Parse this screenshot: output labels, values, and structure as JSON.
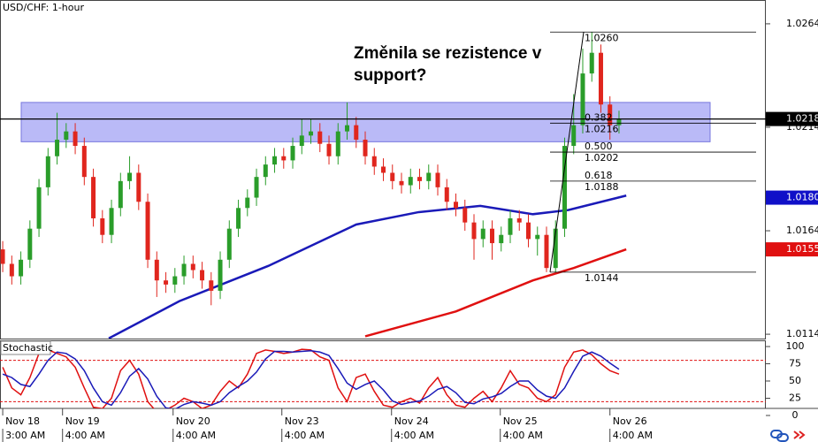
{
  "chart_data": [
    {
      "type": "candlestick",
      "title": "USD/CHF: 1-hour",
      "annotation": "Změnila se rezistence v support?",
      "up_color": "#2a9d2a",
      "down_color": "#e0261e",
      "open": [
        1.0155,
        1.0148,
        1.0142,
        1.015,
        1.0165,
        1.0185,
        1.02,
        1.0208,
        1.0212,
        1.0205,
        1.019,
        1.017,
        1.0162,
        1.0175,
        1.0188,
        1.0192,
        1.0178,
        1.015,
        1.014,
        1.0138,
        1.0142,
        1.0148,
        1.0145,
        1.014,
        1.0135,
        1.015,
        1.0165,
        1.0175,
        1.018,
        1.019,
        1.0196,
        1.02,
        1.0198,
        1.0205,
        1.021,
        1.0212,
        1.0206,
        1.02,
        1.0212,
        1.0215,
        1.0208,
        1.02,
        1.0195,
        1.0192,
        1.0188,
        1.0186,
        1.019,
        1.0188,
        1.0192,
        1.0185,
        1.0178,
        1.0175,
        1.0168,
        1.016,
        1.0165,
        1.0158,
        1.0162,
        1.017,
        1.0168,
        1.016,
        1.0162,
        1.0146,
        1.0165,
        1.0205,
        1.0215,
        1.024,
        1.025,
        1.0225,
        1.0215
      ],
      "high": [
        1.0159,
        1.0152,
        1.0154,
        1.0169,
        1.0189,
        1.0204,
        1.0221,
        1.0216,
        1.0216,
        1.0209,
        1.0194,
        1.0174,
        1.0179,
        1.0192,
        1.02,
        1.0196,
        1.0182,
        1.0154,
        1.0144,
        1.0146,
        1.0152,
        1.0152,
        1.0149,
        1.0144,
        1.0154,
        1.0169,
        1.0179,
        1.0184,
        1.0194,
        1.02,
        1.0204,
        1.0204,
        1.0209,
        1.0218,
        1.0218,
        1.0216,
        1.021,
        1.0216,
        1.0226,
        1.0219,
        1.0212,
        1.0204,
        1.0199,
        1.0196,
        1.0192,
        1.0194,
        1.0194,
        1.0196,
        1.0196,
        1.0189,
        1.0182,
        1.0179,
        1.0172,
        1.0169,
        1.0169,
        1.0166,
        1.0174,
        1.0174,
        1.0172,
        1.0166,
        1.0166,
        1.0169,
        1.0209,
        1.023,
        1.0252,
        1.026,
        1.0254,
        1.0229,
        1.0222
      ],
      "low": [
        1.0144,
        1.0138,
        1.0138,
        1.0146,
        1.0161,
        1.0181,
        1.0196,
        1.0204,
        1.0201,
        1.0186,
        1.0166,
        1.0158,
        1.0158,
        1.0171,
        1.0184,
        1.0174,
        1.0146,
        1.0132,
        1.0134,
        1.0134,
        1.0138,
        1.0141,
        1.0136,
        1.0128,
        1.0131,
        1.0146,
        1.0161,
        1.0171,
        1.0176,
        1.0186,
        1.0192,
        1.0194,
        1.0194,
        1.0201,
        1.0206,
        1.0202,
        1.0196,
        1.0196,
        1.0208,
        1.0204,
        1.0196,
        1.0191,
        1.0188,
        1.0184,
        1.0182,
        1.0182,
        1.0184,
        1.0184,
        1.0181,
        1.0174,
        1.0171,
        1.0164,
        1.015,
        1.0156,
        1.015,
        1.0154,
        1.0158,
        1.0164,
        1.0156,
        1.0152,
        1.0144,
        1.0144,
        1.0161,
        1.0201,
        1.0211,
        1.0236,
        1.0221,
        1.0208,
        1.0211
      ],
      "close": [
        1.0148,
        1.0142,
        1.015,
        1.0165,
        1.0185,
        1.02,
        1.0208,
        1.0212,
        1.0205,
        1.019,
        1.017,
        1.0162,
        1.0175,
        1.0188,
        1.0192,
        1.0178,
        1.015,
        1.014,
        1.0138,
        1.0142,
        1.0148,
        1.0145,
        1.014,
        1.0135,
        1.015,
        1.0165,
        1.0175,
        1.018,
        1.019,
        1.0196,
        1.02,
        1.0198,
        1.0205,
        1.021,
        1.0212,
        1.0206,
        1.02,
        1.0212,
        1.0215,
        1.0208,
        1.02,
        1.0195,
        1.0192,
        1.0188,
        1.0186,
        1.019,
        1.0188,
        1.0192,
        1.0185,
        1.0178,
        1.0175,
        1.0168,
        1.016,
        1.0165,
        1.0158,
        1.0162,
        1.017,
        1.0168,
        1.016,
        1.0162,
        1.0146,
        1.0165,
        1.0205,
        1.0215,
        1.024,
        1.025,
        1.0225,
        1.0215,
        1.0218
      ],
      "ma": [
        {
          "color": "#1a1ab8",
          "x": [
            11.7,
            19.5,
            29.3,
            39,
            45.9,
            52.7,
            58.5,
            62.4,
            68.8
          ],
          "values": [
            1.0112,
            1.013,
            1.0147,
            1.0167,
            1.0173,
            1.0176,
            1.0172,
            1.0174,
            1.0181
          ]
        },
        {
          "color": "#e01010",
          "x": [
            40,
            50,
            58.5,
            63,
            68.8
          ],
          "values": [
            1.0113,
            1.0125,
            1.014,
            1.0146,
            1.0155
          ]
        }
      ],
      "zone": [
        1.0207,
        1.0226
      ],
      "zone_color": "#8c8cf2",
      "fib": [
        {
          "price": {
            "value": 1.026,
            "label": "1.0260"
          }
        },
        {
          "ratio": "0.382",
          "price": 1.0216
        },
        {
          "ratio": "0.500",
          "price": 1.0202
        },
        {
          "ratio": "0.618",
          "price": 1.0188
        },
        {
          "price": 1.0144
        }
      ],
      "price_tags": [
        {
          "value": 1.0218,
          "color": "#000000"
        },
        {
          "value": 1.018,
          "label": "1.0180",
          "color": "#1010c8"
        },
        {
          "value": 1.0155,
          "color": "#e01010"
        }
      ],
      "xlim": [
        -0.3,
        84.2
      ],
      "ylim": [
        1.01119,
        1.02755
      ],
      "yticks": [
        1.0114,
        1.0164,
        1.0214,
        1.0264
      ],
      "xticks": [
        {
          "value": 0,
          "label": "Nov 18"
        },
        {
          "value": 6.6,
          "label": "Nov 19"
        },
        {
          "value": 18.8,
          "label": "Nov 20"
        },
        {
          "value": 30.8,
          "label": "Nov 23"
        },
        {
          "value": 42.9,
          "label": "Nov 24"
        },
        {
          "value": 54.9,
          "label": "Nov 25"
        },
        {
          "value": 67,
          "label": "Nov 26"
        }
      ],
      "xticks_time": [
        {
          "value": 0,
          "label": "3:00 AM"
        },
        {
          "value": 6.6,
          "label": "4:00 AM"
        },
        {
          "value": 18.8,
          "label": "4:00 AM"
        },
        {
          "value": 30.8,
          "label": "4:00 AM"
        },
        {
          "value": 42.9,
          "label": "4:00 AM"
        },
        {
          "value": 54.9,
          "label": "4:00 AM"
        },
        {
          "value": 67,
          "label": "4:00 AM"
        }
      ]
    },
    {
      "type": "line",
      "title": "Stochastic",
      "ylim": [
        0,
        109
      ],
      "yticks": [
        0,
        25,
        50,
        75,
        100
      ],
      "levels": [
        80,
        20
      ],
      "level_color": "#e01010",
      "series": [
        {
          "color": "#e01010",
          "values": [
            70,
            40,
            30,
            55,
            90,
            95,
            90,
            85,
            70,
            40,
            12,
            10,
            25,
            65,
            80,
            60,
            20,
            5,
            8,
            15,
            25,
            20,
            10,
            15,
            35,
            50,
            40,
            60,
            90,
            95,
            93,
            90,
            92,
            96,
            95,
            85,
            80,
            40,
            20,
            55,
            60,
            35,
            15,
            12,
            20,
            25,
            18,
            40,
            55,
            30,
            15,
            12,
            25,
            35,
            20,
            40,
            65,
            45,
            40,
            25,
            20,
            30,
            70,
            92,
            95,
            88,
            75,
            65,
            60
          ]
        },
        {
          "color": "#1a1ab8",
          "values": [
            60,
            55,
            45,
            42,
            60,
            80,
            92,
            90,
            82,
            65,
            40,
            20,
            15,
            33,
            57,
            68,
            53,
            28,
            11,
            9,
            16,
            20,
            18,
            15,
            20,
            33,
            42,
            50,
            63,
            82,
            93,
            93,
            92,
            93,
            94,
            92,
            87,
            68,
            47,
            38,
            45,
            50,
            37,
            21,
            16,
            19,
            21,
            28,
            38,
            42,
            33,
            19,
            17,
            24,
            27,
            32,
            42,
            50,
            50,
            37,
            28,
            25,
            40,
            64,
            86,
            92,
            86,
            76,
            67
          ]
        }
      ]
    }
  ]
}
